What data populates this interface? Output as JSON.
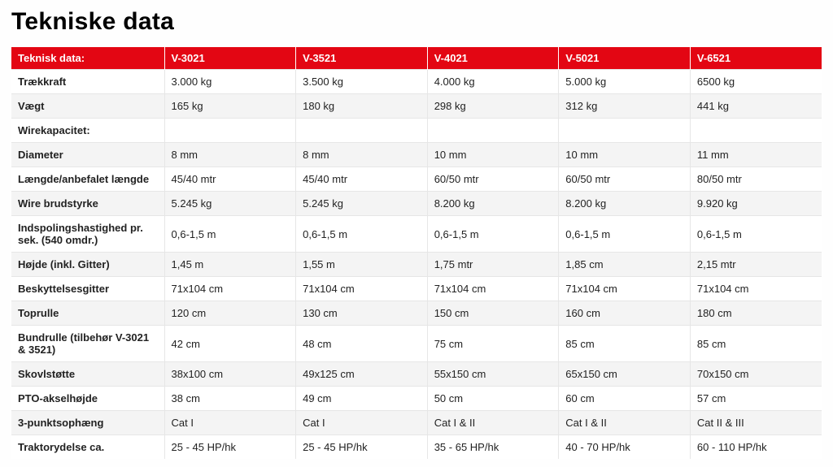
{
  "title": "Tekniske data",
  "table": {
    "header_bg": "#e30613",
    "header_fg": "#ffffff",
    "row_stripe_bg": "#f4f4f4",
    "row_bg": "#ffffff",
    "border_color": "#e6e6e6",
    "font_size": 13,
    "title_fontsize": 30,
    "columns": [
      "Teknisk data:",
      "V-3021",
      "V-3521",
      "V-4021",
      "V-5021",
      "V-6521"
    ],
    "rows": [
      [
        "Trækkraft",
        "3.000 kg",
        "3.500 kg",
        "4.000 kg",
        "5.000 kg",
        "6500 kg"
      ],
      [
        "Vægt",
        "165 kg",
        "180 kg",
        "298 kg",
        "312 kg",
        "441 kg"
      ],
      [
        "Wirekapacitet:",
        "",
        "",
        "",
        "",
        ""
      ],
      [
        "Diameter",
        "8 mm",
        "8 mm",
        "10 mm",
        "10 mm",
        "11 mm"
      ],
      [
        "Længde/anbefalet længde",
        "45/40 mtr",
        "45/40 mtr",
        "60/50 mtr",
        "60/50 mtr",
        "80/50 mtr"
      ],
      [
        "Wire brudstyrke",
        "5.245 kg",
        "5.245 kg",
        "8.200 kg",
        "8.200 kg",
        "9.920 kg"
      ],
      [
        "Indspolingshastighed pr. sek. (540 omdr.)",
        "0,6-1,5 m",
        "0,6-1,5 m",
        "0,6-1,5 m",
        "0,6-1,5 m",
        "0,6-1,5 m"
      ],
      [
        "Højde (inkl. Gitter)",
        "1,45 m",
        "1,55 m",
        "1,75 mtr",
        "1,85 cm",
        "2,15 mtr"
      ],
      [
        "Beskyttelsesgitter",
        "71x104 cm",
        "71x104 cm",
        "71x104 cm",
        "71x104 cm",
        "71x104 cm"
      ],
      [
        "Toprulle",
        "120 cm",
        "130 cm",
        "150 cm",
        "160 cm",
        "180 cm"
      ],
      [
        "Bundrulle (tilbehør V-3021 & 3521)",
        "42 cm",
        "48 cm",
        "75 cm",
        "85 cm",
        "85 cm"
      ],
      [
        "Skovlstøtte",
        "38x100 cm",
        "49x125 cm",
        "55x150 cm",
        "65x150 cm",
        "70x150 cm"
      ],
      [
        "PTO-akselhøjde",
        "38 cm",
        "49 cm",
        "50 cm",
        "60 cm",
        "57 cm"
      ],
      [
        "3-punktsophæng",
        "Cat I",
        "Cat I",
        "Cat I & II",
        "Cat I & II",
        "Cat II & III"
      ],
      [
        "Traktorydelse ca.",
        "25 - 45 HP/hk",
        "25 - 45 HP/hk",
        "35 - 65 HP/hk",
        "40 - 70 HP/hk",
        "60 - 110 HP/hk"
      ]
    ]
  }
}
